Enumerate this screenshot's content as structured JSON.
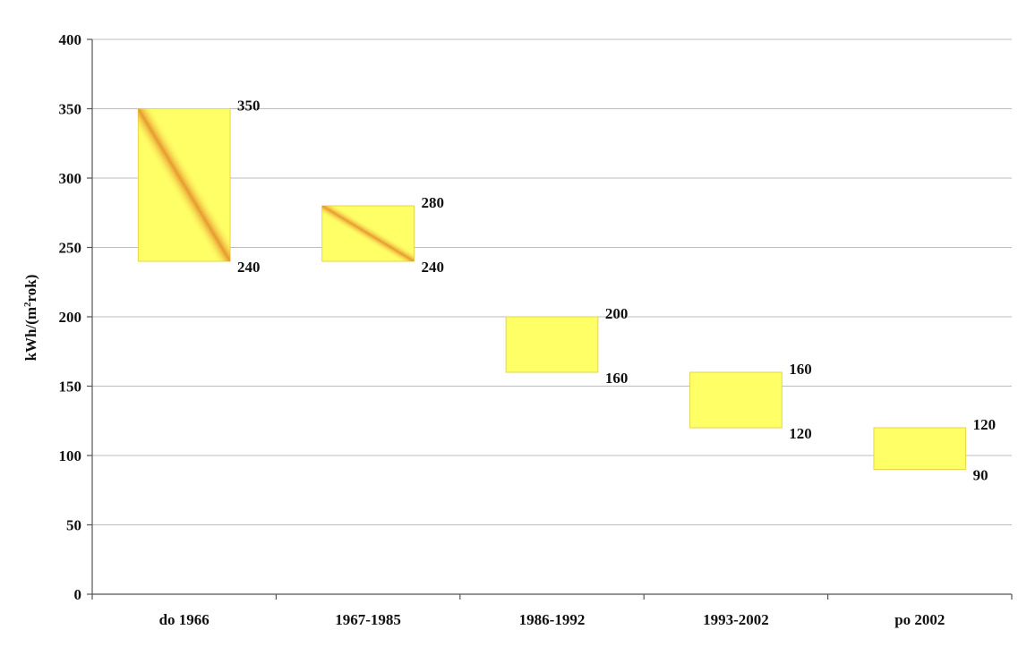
{
  "chart_data": {
    "type": "bar",
    "subtype": "floating-range",
    "title": "",
    "xlabel": "",
    "ylabel": "kWh/(m²rok)",
    "ylabel_parts": {
      "before_sup": "kWh/(m",
      "sup": "2",
      "after_sup": "rok)"
    },
    "ylim": [
      0,
      400
    ],
    "yticks": [
      0,
      50,
      100,
      150,
      200,
      250,
      300,
      350,
      400
    ],
    "grid": true,
    "legend": "none",
    "categories": [
      "do 1966",
      "1967-1985",
      "1986-1992",
      "1993-2002",
      "po 2002"
    ],
    "ranges": [
      {
        "low": 240,
        "high": 350
      },
      {
        "low": 240,
        "high": 280
      },
      {
        "low": 160,
        "high": 200
      },
      {
        "low": 120,
        "high": 160
      },
      {
        "low": 90,
        "high": 120
      }
    ],
    "low_labels": [
      "240",
      "240",
      "160",
      "120",
      "90"
    ],
    "high_labels": [
      "350",
      "280",
      "200",
      "160",
      "120"
    ],
    "colors": {
      "bar_fill": "#ffff66",
      "bar_stroke": "#e6d64a",
      "streak": "#e07a1e",
      "grid": "#bdbdbd"
    }
  }
}
